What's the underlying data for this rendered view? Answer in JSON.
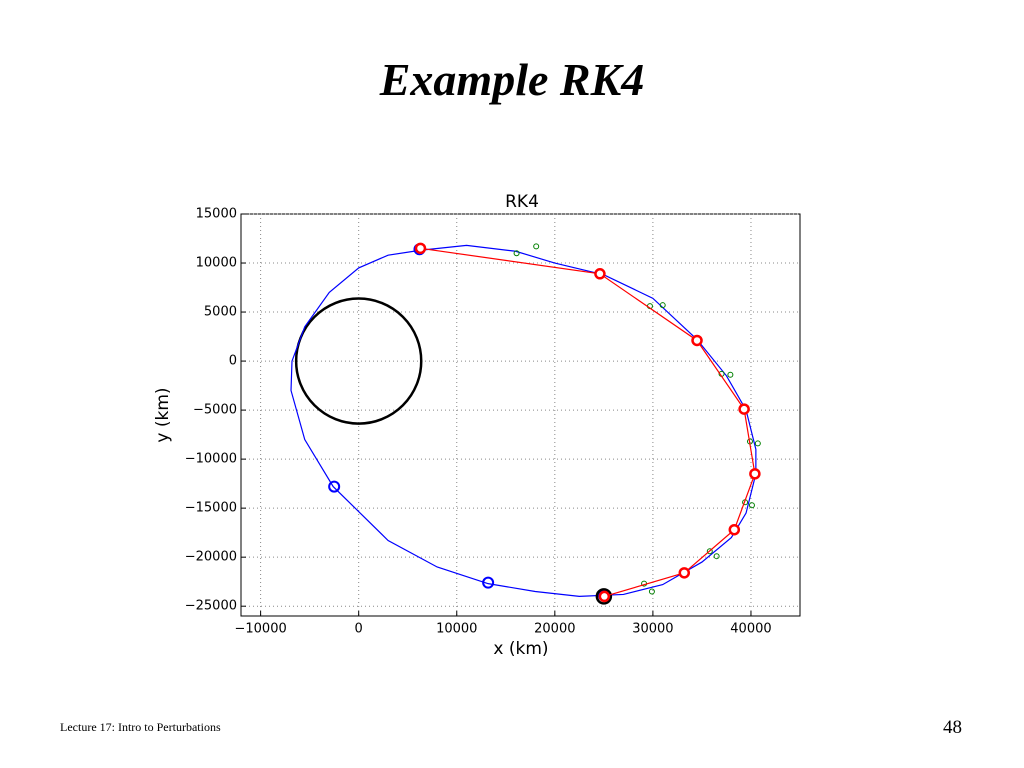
{
  "slide": {
    "title": "Example RK4",
    "footer": "Lecture 17: Intro to Perturbations",
    "page_number": "48"
  },
  "chart_data": {
    "type": "scatter",
    "title": "RK4",
    "x_label": "x (km)",
    "y_label": "y (km)",
    "grid": true,
    "xlim": [
      -12000,
      45000
    ],
    "ylim": [
      -26000,
      15000
    ],
    "xticks": [
      {
        "value": -10000,
        "label": "−10000"
      },
      0,
      10000,
      20000,
      30000,
      40000
    ],
    "yticks": [
      15000,
      10000,
      5000,
      0,
      {
        "value": -5000,
        "label": "−5000"
      },
      {
        "value": -10000,
        "label": "−10000"
      },
      {
        "value": -15000,
        "label": "−15000"
      },
      {
        "value": -20000,
        "label": "−20000"
      },
      {
        "value": -25000,
        "label": "−25000"
      }
    ],
    "series": [
      {
        "color": "#0000ff",
        "mode": "line",
        "x": [
          6300,
          11000,
          16000,
          20000,
          25000,
          30000,
          34500,
          37500,
          39500,
          40500,
          40500,
          39500,
          38000,
          35000,
          31000,
          27000,
          22500,
          18000,
          13200,
          8000,
          3000,
          -2600,
          -5500,
          -6900,
          -6800,
          -5500,
          -3000,
          0,
          3000,
          6300
        ],
        "y": [
          11300,
          11800,
          11200,
          10000,
          8800,
          6400,
          2200,
          -1500,
          -5000,
          -9000,
          -11500,
          -15500,
          -18000,
          -20500,
          -22800,
          -23800,
          -24000,
          -23500,
          -22700,
          -21000,
          -18300,
          -12800,
          -8000,
          -3000,
          0,
          3500,
          7000,
          9500,
          10800,
          11300
        ]
      },
      {
        "color": "#000000",
        "mode": "circle",
        "x": [
          0
        ],
        "y": [
          0
        ],
        "r": [
          6378
        ]
      },
      {
        "color": "#0000ff",
        "mode": "markers",
        "x": [
          6200,
          -2500,
          13200,
          25000
        ],
        "y": [
          11400,
          -12800,
          -22600,
          -23900
        ]
      },
      {
        "color": "#ff0000",
        "mode": "line-markers",
        "x": [
          25050,
          33200,
          38300,
          40400,
          39300,
          34500,
          24600,
          6300
        ],
        "y": [
          -24000,
          -21600,
          -17200,
          -11500,
          -4900,
          2100,
          8900,
          11500
        ]
      },
      {
        "color": "#008000",
        "mode": "small-markers",
        "x": [
          18100,
          16100,
          29700,
          31000,
          37000,
          37900,
          39900,
          40700,
          39400,
          40100,
          35800,
          36500,
          29100,
          29900
        ],
        "y": [
          11700,
          11000,
          5600,
          5700,
          -1300,
          -1400,
          -8200,
          -8400,
          -14400,
          -14700,
          -19400,
          -19900,
          -22700,
          -23500
        ]
      },
      {
        "color": "#000000",
        "mode": "big-markers",
        "x": [
          25000
        ],
        "y": [
          -24000
        ]
      }
    ]
  }
}
